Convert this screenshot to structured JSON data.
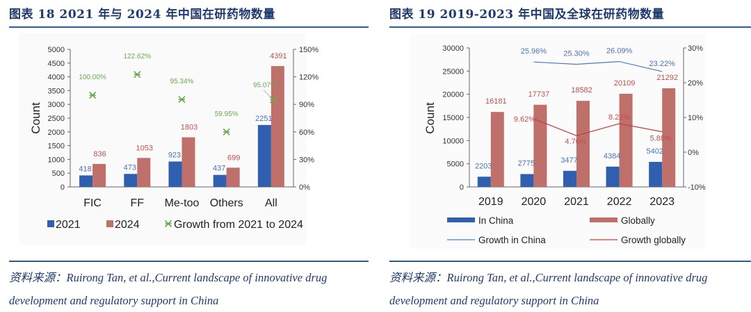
{
  "figures": [
    {
      "title": "图表 18   2021 年与 2024 年中国在研药物数量",
      "source_line1": "资料来源：Ruirong Tan, et al.,Current landscape of innovative drug",
      "source_line2": "development and regulatory support in China"
    },
    {
      "title": "图表 19   2019-2023 年中国及全球在研药物数量",
      "source_line1": "资料来源：Ruirong Tan, et al.,Current landscape of innovative drug",
      "source_line2": "development and regulatory support in China"
    }
  ],
  "colors": {
    "blue": "#2f5fae",
    "red": "#c0706a",
    "green": "#6aa84f",
    "blue_label": "#4a72b8",
    "red_label": "#c0504d",
    "growth_china_line": "#4a7cc4",
    "growth_global_line": "#c0403a",
    "title": "#1f3b6e"
  },
  "chart_data": [
    {
      "type": "bar",
      "title": "",
      "categories": [
        "FIC",
        "FF",
        "Me-too",
        "Others",
        "All"
      ],
      "series": [
        {
          "name": "2021",
          "values": [
            418,
            473,
            923,
            437,
            2251
          ],
          "axis": "left"
        },
        {
          "name": "2024",
          "values": [
            836,
            1053,
            1803,
            699,
            4391
          ],
          "axis": "left"
        },
        {
          "name": "Growth from 2021 to 2024",
          "values": [
            100.0,
            122.62,
            95.34,
            59.95,
            95.07
          ],
          "axis": "right",
          "kind": "scatter",
          "labels": [
            "100.00%",
            "122.62%",
            "95.34%",
            "59.95%",
            "95.07%"
          ]
        }
      ],
      "ylabel": "Count",
      "ylim": [
        0,
        5000
      ],
      "yticks": [
        "0",
        "500",
        "1000",
        "1500",
        "2000",
        "2500",
        "3000",
        "3500",
        "4000",
        "4500",
        "5000"
      ],
      "y2lim": [
        0,
        150
      ],
      "y2ticks": [
        "0%",
        "30%",
        "60%",
        "90%",
        "120%",
        "150%"
      ],
      "legend": [
        "2021",
        "2024",
        "Growth from 2021 to 2024"
      ],
      "legend_position": "bottom",
      "grid": false
    },
    {
      "type": "bar",
      "title": "",
      "categories": [
        "2019",
        "2020",
        "2021",
        "2022",
        "2023"
      ],
      "series": [
        {
          "name": "In China",
          "values": [
            2203,
            2775,
            3477,
            4384,
            5402
          ],
          "axis": "left"
        },
        {
          "name": "Globally",
          "values": [
            16181,
            17737,
            18582,
            20109,
            21292
          ],
          "axis": "left"
        },
        {
          "name": "Growth in China",
          "kind": "line",
          "axis": "right",
          "values": [
            null,
            25.96,
            25.3,
            26.09,
            23.22
          ],
          "labels": [
            "",
            "25.96%",
            "25.30%",
            "26.09%",
            "23.22%"
          ]
        },
        {
          "name": "Growth globally",
          "kind": "line",
          "axis": "right",
          "values": [
            null,
            9.62,
            4.76,
            8.22,
            5.88
          ],
          "labels": [
            "",
            "9.62%",
            "4.76%",
            "8.22%",
            "5.88%"
          ]
        }
      ],
      "ylabel": "Count",
      "ylim": [
        0,
        30000
      ],
      "yticks": [
        "0",
        "5000",
        "10000",
        "15000",
        "20000",
        "25000",
        "30000"
      ],
      "y2lim": [
        -10,
        30
      ],
      "y2ticks": [
        "-10%",
        "0%",
        "10%",
        "20%",
        "30%"
      ],
      "legend": [
        "In China",
        "Globally",
        "Growth in China",
        "Growth globally"
      ],
      "legend_position": "bottom",
      "grid": false
    }
  ]
}
